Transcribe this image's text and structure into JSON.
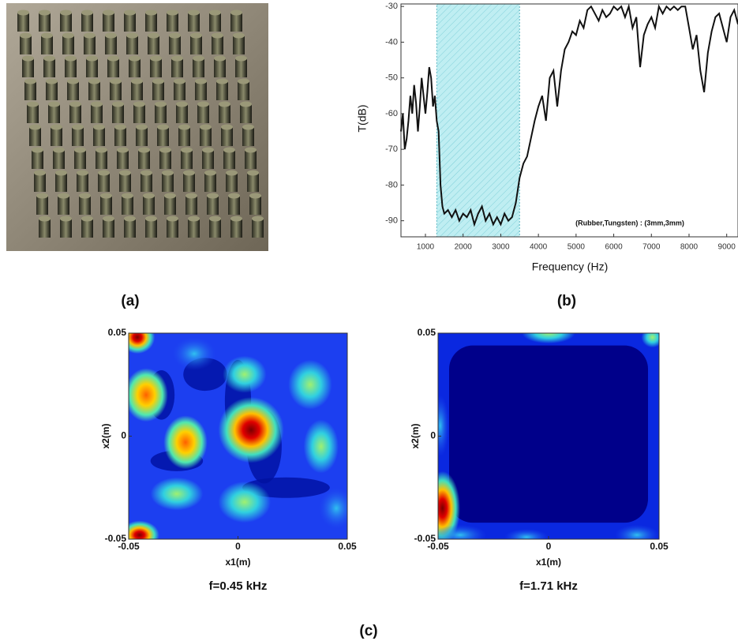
{
  "panel_labels": [
    "(a)",
    "(b)",
    "(c)"
  ],
  "chart_data": [
    {
      "type": "line",
      "ylabel": "T(dB)",
      "xlabel": "Frequency (Hz)",
      "annotation": "(Rubber,Tungsten) : (3mm,3mm)",
      "x": [
        350,
        400,
        450,
        500,
        550,
        600,
        650,
        700,
        750,
        800,
        850,
        900,
        950,
        1000,
        1050,
        1100,
        1150,
        1200,
        1250,
        1300,
        1350,
        1400,
        1450,
        1500,
        1600,
        1700,
        1800,
        1900,
        2000,
        2100,
        2200,
        2300,
        2400,
        2500,
        2600,
        2700,
        2800,
        2900,
        3000,
        3100,
        3200,
        3300,
        3400,
        3500,
        3600,
        3700,
        3800,
        3900,
        4000,
        4100,
        4200,
        4300,
        4400,
        4500,
        4600,
        4700,
        4800,
        4900,
        5000,
        5100,
        5200,
        5300,
        5400,
        5500,
        5600,
        5700,
        5800,
        5900,
        6000,
        6100,
        6200,
        6300,
        6400,
        6500,
        6600,
        6700,
        6800,
        6900,
        7000,
        7100,
        7200,
        7300,
        7400,
        7500,
        7600,
        7700,
        7800,
        7900,
        8000,
        8100,
        8200,
        8300,
        8400,
        8500,
        8600,
        8700,
        8800,
        8900,
        9000,
        9100,
        9200,
        9300
      ],
      "series": [
        {
          "color": "#111111",
          "values": [
            -65,
            -60,
            -70,
            -67,
            -62,
            -55,
            -60,
            -52,
            -57,
            -65,
            -58,
            -50,
            -55,
            -60,
            -54,
            -47,
            -50,
            -58,
            -55,
            -62,
            -65,
            -80,
            -86,
            -88,
            -87,
            -89,
            -87,
            -90,
            -88,
            -89,
            -87,
            -91,
            -88,
            -86,
            -90,
            -88,
            -91,
            -89,
            -91,
            -88,
            -90,
            -89,
            -85,
            -78,
            -74,
            -72,
            -67,
            -62,
            -58,
            -55,
            -62,
            -50,
            -48,
            -58,
            -48,
            -42,
            -40,
            -37,
            -38,
            -34,
            -36,
            -31,
            -30,
            -32,
            -34,
            -31,
            -33,
            -32,
            -30,
            -31,
            -30,
            -33,
            -30,
            -36,
            -33,
            -47,
            -38,
            -35,
            -33,
            -36,
            -30,
            -32,
            -30,
            -31,
            -30,
            -31,
            -30,
            -30,
            -36,
            -42,
            -38,
            -48,
            -54,
            -43,
            -37,
            -33,
            -32,
            -36,
            -40,
            -33,
            -31,
            -35
          ]
        }
      ],
      "xlim": [
        350,
        9300
      ],
      "ylim": [
        -94.5,
        -29.3
      ],
      "xticks": [
        1000,
        2000,
        3000,
        4000,
        5000,
        6000,
        7000,
        8000,
        9000
      ],
      "yticks": [
        -30,
        -40,
        -50,
        -60,
        -70,
        -80,
        -90
      ],
      "band": [
        1300,
        3500
      ],
      "band_color": "#bfeef2"
    },
    {
      "type": "heatmap",
      "caption": "f=0.45 kHz",
      "xlabel": "x1(m)",
      "ylabel": "x2(m)",
      "xlim": [
        -0.05,
        0.05
      ],
      "ylim": [
        -0.05,
        0.05
      ],
      "xticks": [
        -0.05,
        0,
        0.05
      ],
      "yticks": [
        -0.05,
        0,
        0.05
      ]
    },
    {
      "type": "heatmap",
      "caption": "f=1.71 kHz",
      "xlabel": "x1(m)",
      "ylabel": "x2(m)",
      "xlim": [
        -0.05,
        0.05
      ],
      "ylim": [
        -0.05,
        0.05
      ],
      "xticks": [
        -0.05,
        0,
        0.05
      ],
      "yticks": [
        -0.05,
        0,
        0.05
      ]
    }
  ]
}
